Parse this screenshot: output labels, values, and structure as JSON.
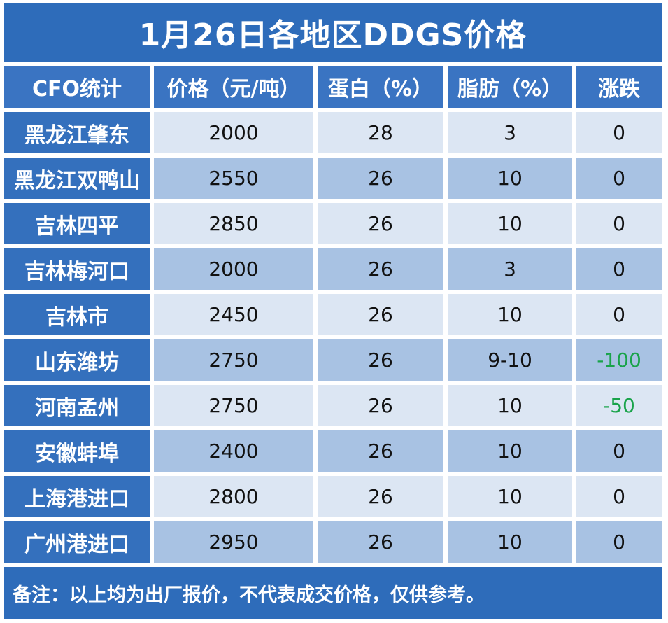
{
  "chart_data": {
    "type": "table",
    "title": "1月26日各地区DDGS价格",
    "columns": [
      "CFO统计",
      "价格（元/吨）",
      "蛋白（%）",
      "脂肪（%）",
      "涨跌"
    ],
    "rows": [
      [
        "黑龙江肇东",
        "2000",
        "28",
        "3",
        "0"
      ],
      [
        "黑龙江双鸭山",
        "2550",
        "26",
        "10",
        "0"
      ],
      [
        "吉林四平",
        "2850",
        "26",
        "10",
        "0"
      ],
      [
        "吉林梅河口",
        "2000",
        "26",
        "3",
        "0"
      ],
      [
        "吉林市",
        "2450",
        "26",
        "10",
        "0"
      ],
      [
        "山东潍坊",
        "2750",
        "26",
        "9-10",
        "-100"
      ],
      [
        "河南孟州",
        "2750",
        "26",
        "10",
        "-50"
      ],
      [
        "安徽蚌埠",
        "2400",
        "26",
        "10",
        "0"
      ],
      [
        "上海港进口",
        "2800",
        "26",
        "10",
        "0"
      ],
      [
        "广州港进口",
        "2950",
        "26",
        "10",
        "0"
      ]
    ],
    "note": "备注：以上均为出厂报价，不代表成交价格，仅供参考。"
  },
  "colors": {
    "header_bg": "#3a74c2",
    "title_bg": "#2e6cba",
    "row_light": "#dce6f3",
    "row_dark": "#a8c2e3",
    "decline": "#19a34a"
  }
}
